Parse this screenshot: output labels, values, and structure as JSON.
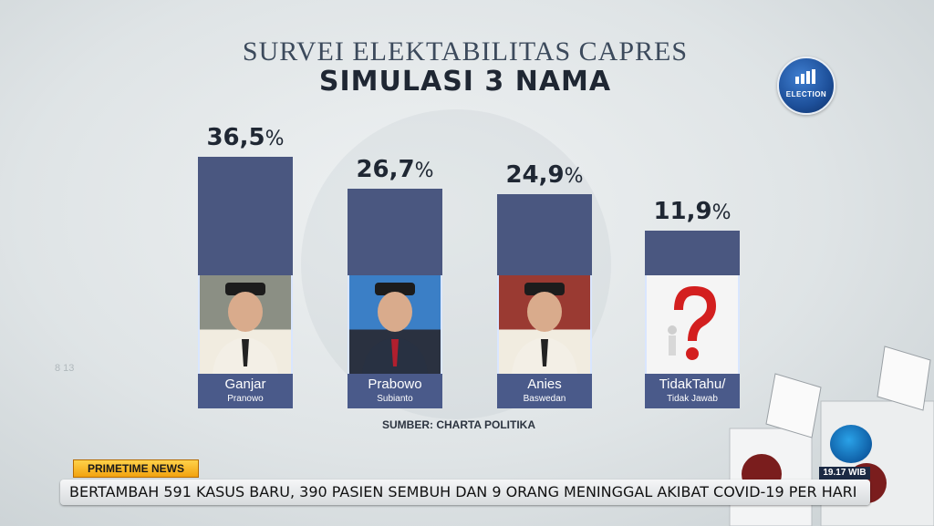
{
  "title": "SURVEI ELEKTABILITAS CAPRES",
  "subtitle": "SIMULASI 3 NAMA",
  "logo_text": "ELECTION",
  "source": "SUMBER: CHARTA POLITIKA",
  "small_mark": "8 13",
  "program_tag": "PRIMETIME NEWS",
  "ticker": "BERTAMBAH 591 KASUS BARU, 390 PASIEN SEMBUH DAN 9 ORANG MENINGGAL AKIBAT COVID-19 PER HARI",
  "clock": "19.17 WIB",
  "candidates": [
    {
      "name": "Ganjar",
      "surname": "Pranowo",
      "value_label": "36,5",
      "symbol": "%"
    },
    {
      "name": "Prabowo",
      "surname": "Subianto",
      "value_label": "26,7",
      "symbol": "%"
    },
    {
      "name": "Anies",
      "surname": "Baswedan",
      "value_label": "24,9",
      "symbol": "%"
    },
    {
      "name": "TidakTahu/",
      "surname": "Tidak Jawab",
      "value_label": "11,9",
      "symbol": "%"
    }
  ],
  "chart_data": {
    "type": "bar",
    "title": "SURVEI ELEKTABILITAS CAPRES",
    "subtitle": "SIMULASI 3 NAMA",
    "categories": [
      "Ganjar Pranowo",
      "Prabowo Subianto",
      "Anies Baswedan",
      "TidakTahu/ Tidak Jawab"
    ],
    "values": [
      36.5,
      26.7,
      24.9,
      11.9
    ],
    "unit": "%",
    "bar_color": "#4a5780"
  }
}
